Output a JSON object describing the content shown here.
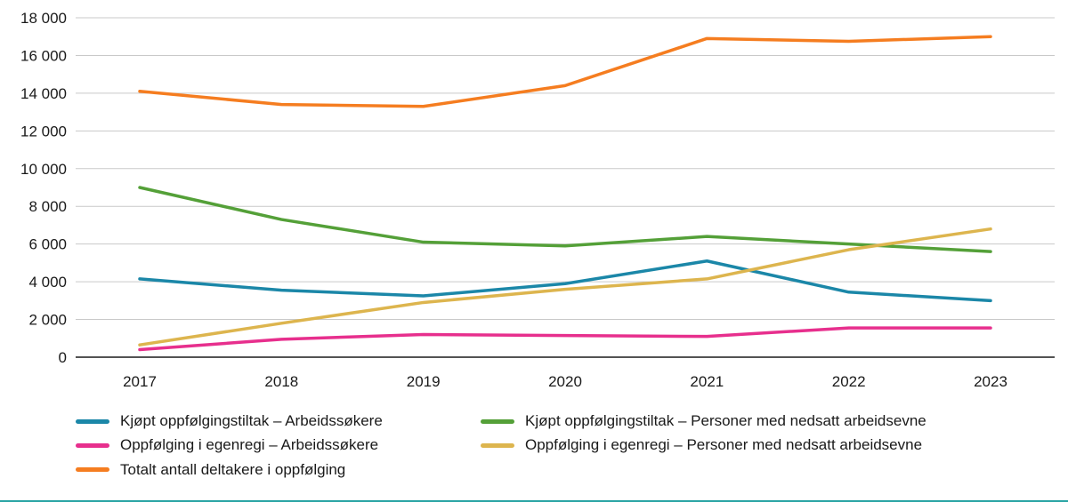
{
  "chart_data": {
    "type": "line",
    "title": "",
    "xlabel": "",
    "ylabel": "",
    "x": [
      "2017",
      "2018",
      "2019",
      "2020",
      "2021",
      "2022",
      "2023"
    ],
    "ylim": [
      0,
      18000
    ],
    "ytick_step": 2000,
    "ytick_labels": [
      "0",
      "2 000",
      "4 000",
      "6 000",
      "8 000",
      "10 000",
      "12 000",
      "14 000",
      "16 000",
      "18 000"
    ],
    "grid": "horizontal",
    "legend_position": "bottom",
    "series": [
      {
        "name": "Kjøpt oppfølgingstiltak – Arbeidssøkere",
        "color": "#1b87a8",
        "values": [
          4150,
          3550,
          3250,
          3900,
          5100,
          3450,
          3000
        ]
      },
      {
        "name": "Kjøpt oppfølgingstiltak – Personer med nedsatt arbeidsevne",
        "color": "#54a038",
        "values": [
          9000,
          7300,
          6100,
          5900,
          6400,
          6000,
          5600
        ]
      },
      {
        "name": "Oppfølging i egenregi – Arbeidssøkere",
        "color": "#e72f8d",
        "values": [
          400,
          950,
          1200,
          1150,
          1100,
          1550,
          1550
        ]
      },
      {
        "name": "Oppfølging i egenregi – Personer med nedsatt arbeidsevne",
        "color": "#ddb54e",
        "values": [
          650,
          1800,
          2900,
          3600,
          4150,
          5700,
          6800
        ]
      },
      {
        "name": "Totalt antall deltakere i oppfølging",
        "color": "#f57d20",
        "values": [
          14100,
          13400,
          13300,
          14400,
          16900,
          16750,
          17000
        ]
      }
    ],
    "colors": {
      "grid": "#c9c9c9",
      "axis": "#1a1a1a",
      "text": "#1a1a1a",
      "bottom_rule": "#29a4a4"
    }
  }
}
